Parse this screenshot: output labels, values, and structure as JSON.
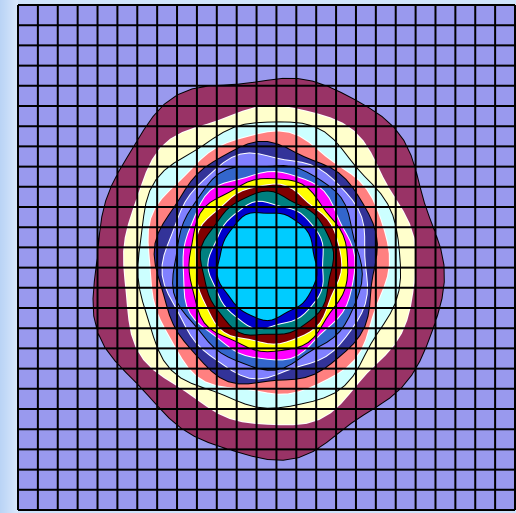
{
  "chart_data": {
    "type": "heatmap",
    "subtype": "filled-contour",
    "title": "",
    "xlabel": "",
    "ylabel": "",
    "grid": true,
    "grid_cells": [
      25,
      25
    ],
    "legend": "none",
    "background_color": "#9999ee",
    "grid_color": "#000000",
    "contour_levels": [
      {
        "level": 1,
        "color": "#993366",
        "radius": 0.53
      },
      {
        "level": 2,
        "color": "#ffffcc",
        "radius": 0.445
      },
      {
        "level": 3,
        "color": "#ccffff",
        "radius": 0.4
      },
      {
        "level": 4,
        "color": "#ff8080",
        "radius": 0.365
      },
      {
        "level": 5,
        "color": "#333399",
        "radius": 0.335
      },
      {
        "level": 6,
        "color": "#8080ff",
        "radius": 0.31
      },
      {
        "level": 7,
        "color": "#3366cc",
        "radius": 0.285
      },
      {
        "level": 8,
        "color": "#ff00ff",
        "radius": 0.262
      },
      {
        "level": 9,
        "color": "#ffff00",
        "radius": 0.242
      },
      {
        "level": 10,
        "color": "#800000",
        "radius": 0.222
      },
      {
        "level": 11,
        "color": "#008080",
        "radius": 0.2
      },
      {
        "level": 12,
        "color": "#0000cc",
        "radius": 0.175
      },
      {
        "level": 13,
        "color": "#00ccff",
        "radius": 0.15
      }
    ]
  }
}
